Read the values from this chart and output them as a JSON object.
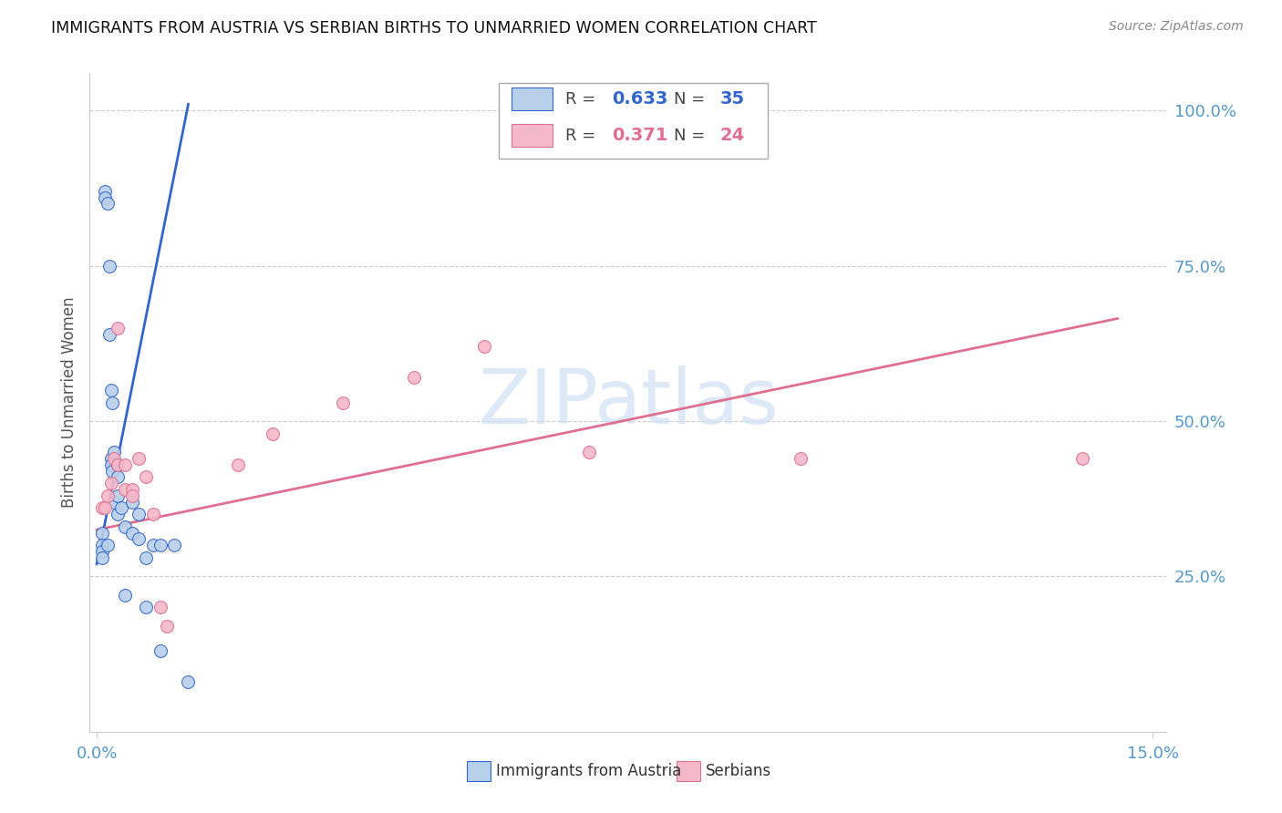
{
  "title": "IMMIGRANTS FROM AUSTRIA VS SERBIAN BIRTHS TO UNMARRIED WOMEN CORRELATION CHART",
  "source": "Source: ZipAtlas.com",
  "ylabel": "Births to Unmarried Women",
  "legend_label1": "Immigrants from Austria",
  "legend_label2": "Serbians",
  "R1": "0.633",
  "N1": "35",
  "R2": "0.371",
  "N2": "24",
  "blue_color": "#b8d0ea",
  "blue_line_color": "#3366cc",
  "pink_color": "#f4b8c8",
  "pink_line_color": "#e07090",
  "watermark_text": "ZIPatlas",
  "watermark_color": "#d0e0f4",
  "title_color": "#111111",
  "axis_tick_color": "#5599cc",
  "grid_color": "#cccccc",
  "blue_scatter_x": [
    0.0008,
    0.0008,
    0.0008,
    0.0008,
    0.0012,
    0.0012,
    0.0015,
    0.0015,
    0.0018,
    0.0018,
    0.002,
    0.002,
    0.002,
    0.0022,
    0.0022,
    0.0025,
    0.0025,
    0.003,
    0.003,
    0.003,
    0.003,
    0.0035,
    0.004,
    0.004,
    0.005,
    0.005,
    0.006,
    0.006,
    0.007,
    0.007,
    0.008,
    0.009,
    0.009,
    0.011,
    0.013
  ],
  "blue_scatter_y": [
    0.32,
    0.3,
    0.29,
    0.28,
    0.87,
    0.86,
    0.85,
    0.3,
    0.75,
    0.64,
    0.55,
    0.44,
    0.43,
    0.53,
    0.42,
    0.45,
    0.37,
    0.43,
    0.41,
    0.38,
    0.35,
    0.36,
    0.33,
    0.22,
    0.37,
    0.32,
    0.35,
    0.31,
    0.28,
    0.2,
    0.3,
    0.3,
    0.13,
    0.3,
    0.08
  ],
  "pink_scatter_x": [
    0.0008,
    0.0012,
    0.0015,
    0.002,
    0.0025,
    0.003,
    0.003,
    0.004,
    0.004,
    0.005,
    0.005,
    0.006,
    0.007,
    0.008,
    0.009,
    0.01,
    0.02,
    0.025,
    0.035,
    0.045,
    0.055,
    0.07,
    0.1,
    0.14
  ],
  "pink_scatter_y": [
    0.36,
    0.36,
    0.38,
    0.4,
    0.44,
    0.65,
    0.43,
    0.43,
    0.39,
    0.39,
    0.38,
    0.44,
    0.41,
    0.35,
    0.2,
    0.17,
    0.43,
    0.48,
    0.53,
    0.57,
    0.62,
    0.45,
    0.44,
    0.44
  ],
  "blue_line_x": [
    0.0,
    0.013
  ],
  "blue_line_y": [
    0.27,
    1.01
  ],
  "pink_line_x": [
    0.0,
    0.145
  ],
  "pink_line_y": [
    0.325,
    0.665
  ],
  "xmin": -0.001,
  "xmax": 0.152,
  "ymin": 0.0,
  "ymax": 1.06,
  "ytick_vals": [
    0.25,
    0.5,
    0.75,
    1.0
  ],
  "ytick_labels": [
    "25.0%",
    "50.0%",
    "75.0%",
    "100.0%"
  ],
  "xtick_vals": [
    0.0,
    0.15
  ],
  "xtick_labels": [
    "0.0%",
    "15.0%"
  ]
}
